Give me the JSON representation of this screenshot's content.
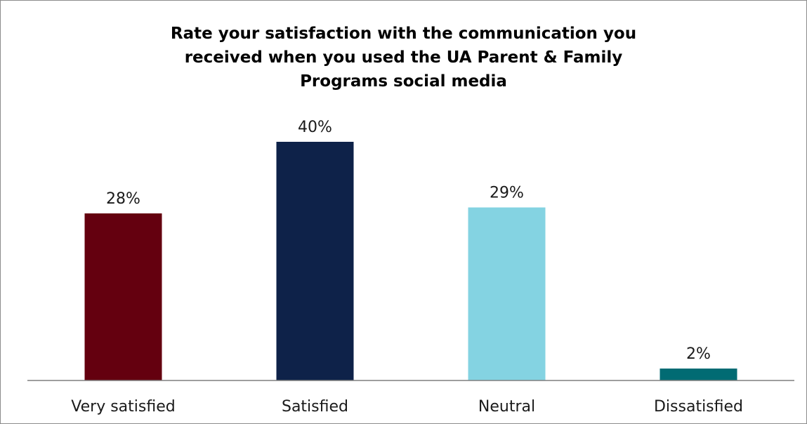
{
  "chart_data": {
    "type": "bar",
    "title_lines": [
      "Rate your satisfaction with the communication you",
      "received when you used the UA Parent & Family",
      "Programs social media"
    ],
    "categories": [
      "Very satisfied",
      "Satisfied",
      "Neutral",
      "Dissatisfied"
    ],
    "values": [
      28,
      40,
      29,
      2
    ],
    "data_labels": [
      "28%",
      "40%",
      "29%",
      "2%"
    ],
    "colors": [
      "#64000f",
      "#0e2249",
      "#84d3e2",
      "#016b73"
    ],
    "ylim": [
      0,
      45
    ],
    "grid": false,
    "legend": "none"
  }
}
